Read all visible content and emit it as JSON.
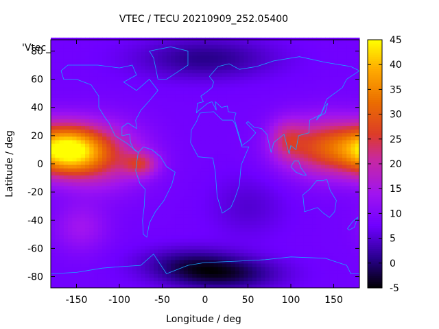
{
  "chart_data": {
    "type": "heatmap",
    "title": "VTEC / TECU 20210909_252.05400",
    "xlabel": "Longitude / deg",
    "ylabel": "Latitude / deg",
    "xlim": [
      -180,
      180
    ],
    "ylim": [
      -88,
      88
    ],
    "x_ticks": [
      -150,
      -100,
      -50,
      0,
      50,
      100,
      150
    ],
    "y_ticks": [
      -80,
      -60,
      -40,
      -20,
      0,
      20,
      40,
      60,
      80
    ],
    "colorbar": {
      "ticks": [
        -5,
        0,
        5,
        10,
        15,
        20,
        25,
        30,
        35,
        40,
        45
      ],
      "range": [
        -5,
        45
      ],
      "palette": "black-blue-violet-red-orange-yellow"
    },
    "overlay_label": "'Vtec_",
    "grid": false,
    "legend": "none",
    "field": {
      "base": 8,
      "blobs": [
        {
          "lon": -160,
          "lat": 10,
          "amp": 30,
          "slon": 28,
          "slat": 12
        },
        {
          "lon": -120,
          "lat": 6,
          "amp": 14,
          "slon": 35,
          "slat": 16
        },
        {
          "lon": -75,
          "lat": 0,
          "amp": 12,
          "slon": 14,
          "slat": 6
        },
        {
          "lon": 140,
          "lat": 12,
          "amp": 20,
          "slon": 35,
          "slat": 14
        },
        {
          "lon": 95,
          "lat": 18,
          "amp": 9,
          "slon": 14,
          "slat": 10
        },
        {
          "lon": -145,
          "lat": -45,
          "amp": 6,
          "slon": 22,
          "slat": 12
        },
        {
          "lon": 20,
          "lat": -78,
          "amp": -10,
          "slon": 45,
          "slat": 8
        },
        {
          "lon": -20,
          "lat": -70,
          "amp": -6,
          "slon": 40,
          "slat": 8
        },
        {
          "lon": 0,
          "lat": 75,
          "amp": -7,
          "slon": 55,
          "slat": 10
        },
        {
          "lon": 50,
          "lat": -30,
          "amp": -3,
          "slon": 30,
          "slat": 15
        }
      ]
    }
  }
}
